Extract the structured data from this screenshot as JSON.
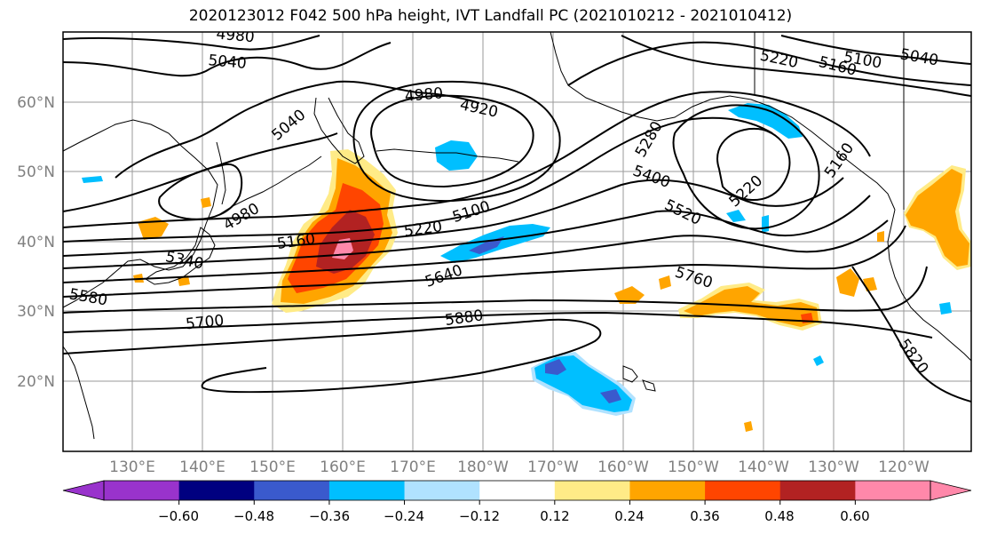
{
  "title": "2020123012 F042 500 hPa height, IVT Landfall PC (2021010212 - 2021010412)",
  "lat_labels": [
    "60°N",
    "50°N",
    "40°N",
    "30°N",
    "20°N"
  ],
  "lon_labels": [
    "130°E",
    "140°E",
    "150°E",
    "160°E",
    "170°E",
    "180°W",
    "170°W",
    "160°W",
    "150°W",
    "140°W",
    "130°W",
    "120°W"
  ],
  "contour_labels": [
    "4980",
    "5040",
    "5040",
    "4980",
    "4920",
    "5220",
    "5160",
    "5100",
    "5040",
    "5280",
    "5400",
    "5220",
    "5520",
    "5160",
    "5100",
    "4980",
    "5160",
    "5220",
    "5340",
    "5580",
    "5640",
    "5700",
    "5880",
    "5760",
    "5820"
  ],
  "colorbar": {
    "colors": [
      "#9933cc",
      "#000080",
      "#3a5acd",
      "#00bfff",
      "#b0e2ff",
      "#ffffff",
      "#ffeb87",
      "#ffa500",
      "#ff4500",
      "#b22222",
      "#ff88aa"
    ],
    "tick_labels": [
      "−0.60",
      "−0.48",
      "−0.36",
      "−0.24",
      "−0.12",
      "0.12",
      "0.24",
      "0.36",
      "0.48",
      "0.60"
    ]
  }
}
